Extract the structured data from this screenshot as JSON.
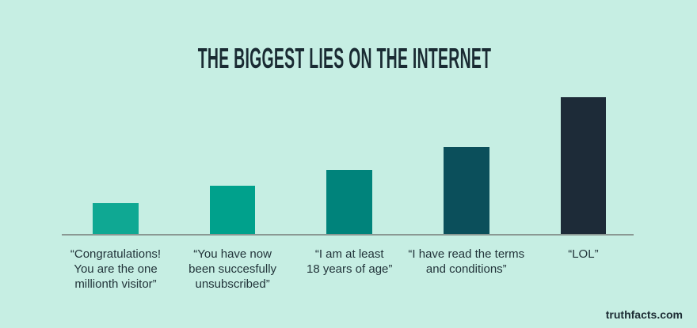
{
  "footer": {
    "watermark": "truthfacts.com"
  },
  "chart_data": {
    "type": "bar",
    "title": "THE BIGGEST LIES ON THE INTERNET",
    "categories": [
      "“Congratulations! You are the one millionth visitor”",
      "“You have now been succesfully unsubscribed”",
      "“I am at least 18 years of age”",
      "“I have read the terms and conditions”",
      "“LOL”"
    ],
    "label_lines": [
      [
        "“Congratulations!",
        "You are the one",
        "millionth visitor”"
      ],
      [
        "“You have now",
        "been succesfully",
        "unsubscribed”"
      ],
      [
        "“I am at least",
        "18 years of age”"
      ],
      [
        "“I have read the terms",
        "and conditions”"
      ],
      [
        "“LOL”"
      ]
    ],
    "values": [
      39,
      61,
      81,
      110,
      173
    ],
    "values_note": "relative bar heights in pixels; chart displays no numeric axis, gridlines or data labels",
    "bar_colors": [
      "#0fa893",
      "#00a18c",
      "#00837b",
      "#0b4f5b",
      "#1d2b38"
    ],
    "background_color": "#c6eee3",
    "axis_line_color": "#8a9893",
    "title_color": "#1a2b33",
    "label_color": "#22343a",
    "xlabel": "",
    "ylabel": "",
    "legend": "none",
    "grid": "off"
  }
}
